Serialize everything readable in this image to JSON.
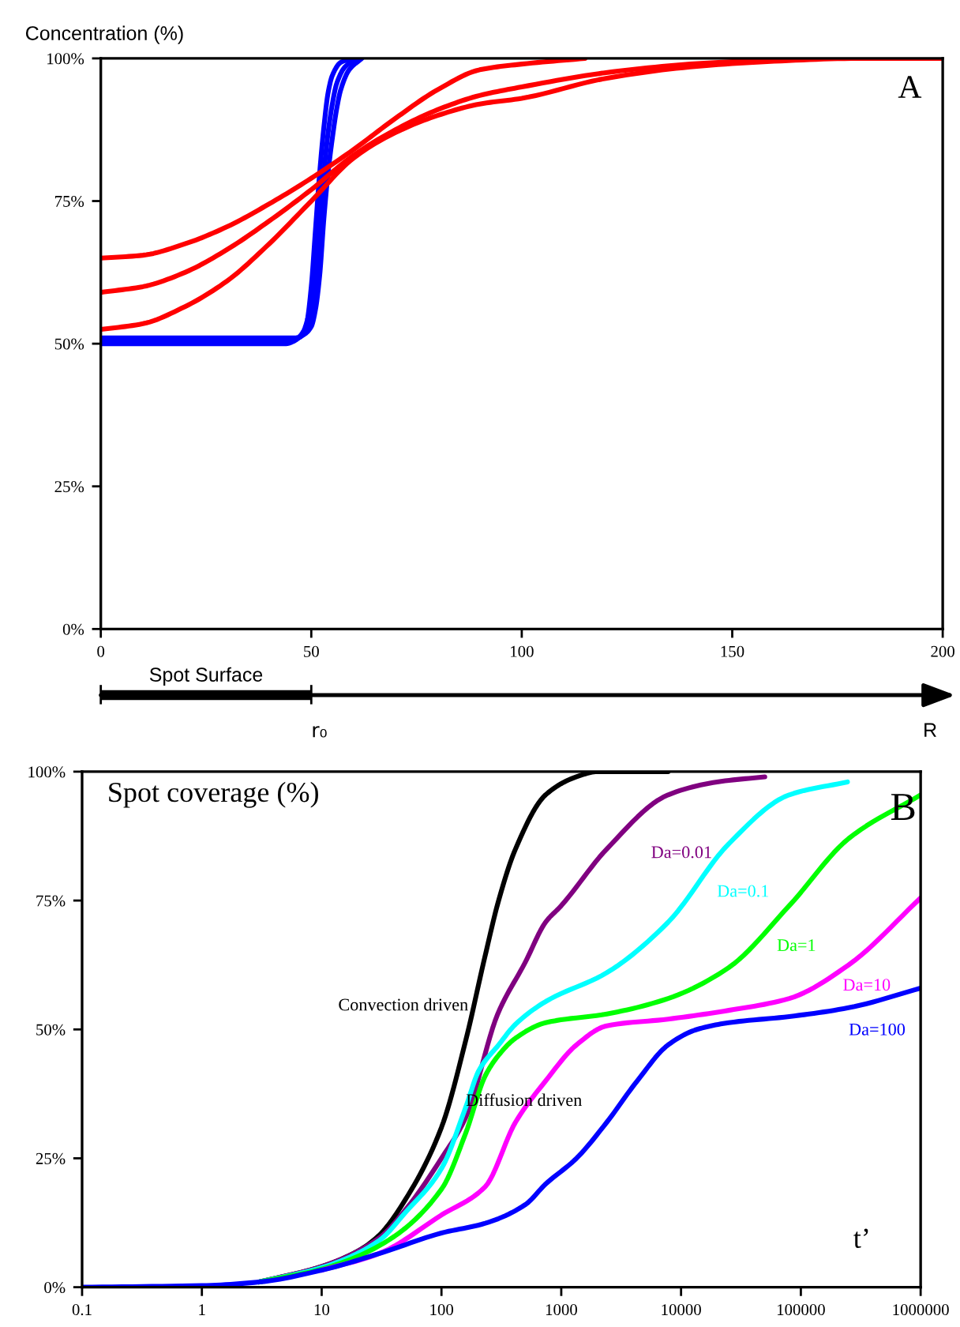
{
  "chart_data": [
    {
      "type": "line",
      "ylabel": "Concentration (%)",
      "xlim": [
        0,
        200
      ],
      "ylim": [
        0,
        100
      ],
      "xticks": [
        0,
        50,
        100,
        150,
        200
      ],
      "yticks": [
        {
          "value": 0,
          "label": "0%"
        },
        {
          "value": 25,
          "label": "25%"
        },
        {
          "value": 50,
          "label": "50%"
        },
        {
          "value": 75,
          "label": "75%"
        },
        {
          "value": 100,
          "label": "100%"
        }
      ],
      "grid": false,
      "legend": false,
      "line_style": "solid",
      "marker": "none",
      "annotations": [
        "A",
        "Spot Surface",
        "r₀",
        "R"
      ],
      "series": [
        {
          "color": "#0000ff",
          "x": [
            0,
            44,
            46,
            48,
            49,
            50,
            51,
            52,
            53,
            54,
            55,
            57,
            60
          ],
          "values": [
            50,
            50,
            50.5,
            52,
            54,
            60,
            70,
            80,
            88,
            94,
            97,
            99.3,
            100
          ]
        },
        {
          "color": "#0000ff",
          "x": [
            0,
            45,
            47,
            49,
            50,
            51,
            52,
            53,
            54,
            55,
            56,
            58,
            61
          ],
          "values": [
            50.5,
            50.5,
            51,
            52.5,
            55,
            61,
            71,
            80,
            87,
            92,
            95.5,
            98.5,
            100
          ]
        },
        {
          "color": "#0000ff",
          "x": [
            0,
            46,
            48,
            50,
            51,
            52,
            53,
            54,
            55,
            56,
            57,
            59,
            62
          ],
          "values": [
            51,
            51,
            51.5,
            53,
            56,
            62,
            72,
            80,
            86,
            91,
            94.5,
            98,
            100
          ]
        },
        {
          "color": "#ff0000",
          "x": [
            0,
            10,
            20,
            30,
            40,
            50,
            60,
            70,
            80,
            90,
            100,
            115
          ],
          "values": [
            65,
            65.5,
            67.5,
            70.5,
            74.5,
            79,
            84,
            89.5,
            94.5,
            98,
            99,
            100
          ]
        },
        {
          "color": "#ff0000",
          "x": [
            0,
            10,
            20,
            30,
            40,
            50,
            60,
            70,
            80,
            90,
            100,
            120,
            140,
            160
          ],
          "values": [
            59,
            60,
            62.5,
            66.5,
            71.5,
            77,
            83,
            87.5,
            91,
            93.5,
            95,
            97.5,
            99,
            99.8
          ]
        },
        {
          "color": "#ff0000",
          "x": [
            0,
            10,
            20,
            30,
            40,
            50,
            60,
            70,
            80,
            90,
            100,
            120,
            140,
            160,
            180,
            200
          ],
          "values": [
            52.5,
            53.5,
            56.5,
            61,
            67.5,
            75,
            82.5,
            87,
            90,
            92,
            93,
            96.5,
            98.5,
            99.5,
            100,
            100
          ]
        }
      ]
    },
    {
      "type": "line",
      "ylabel": "Spot coverage (%)",
      "xlabel": "t’",
      "log": "x",
      "xlim": [
        0.1,
        1000000
      ],
      "ylim": [
        0,
        100
      ],
      "xticks": [
        0.1,
        1,
        10,
        100,
        1000,
        10000,
        100000,
        1000000
      ],
      "yticks": [
        {
          "value": 0,
          "label": "0%"
        },
        {
          "value": 25,
          "label": "25%"
        },
        {
          "value": 50,
          "label": "50%"
        },
        {
          "value": 75,
          "label": "75%"
        },
        {
          "value": 100,
          "label": "100%"
        }
      ],
      "grid": false,
      "legend": false,
      "line_style": "solid",
      "marker": "none",
      "annotations": [
        "Convection driven",
        "Diffusion driven",
        "B"
      ],
      "series": [
        {
          "color": "#000000",
          "x": [
            3,
            10,
            20,
            30,
            50,
            100,
            160,
            230,
            300,
            415,
            740,
            1340,
            2000,
            7800
          ],
          "values": [
            1,
            4,
            7,
            10,
            17,
            31,
            48,
            64,
            75,
            85,
            95.5,
            99,
            100,
            100
          ]
        },
        {
          "name": "Da=0.01",
          "color": "#800080",
          "x": [
            3,
            10,
            30,
            50,
            100,
            160,
            295,
            500,
            740,
            1000,
            2400,
            7800,
            20000,
            50000
          ],
          "values": [
            1,
            4,
            9.5,
            15,
            25,
            33,
            53,
            63,
            70.8,
            74,
            85,
            95.5,
            98,
            99
          ]
        },
        {
          "name": "Da=0.1",
          "color": "#00ffff",
          "x": [
            3,
            10,
            30,
            50,
            100,
            160,
            205,
            300,
            415,
            740,
            2400,
            7800,
            25000,
            80000,
            245000
          ],
          "values": [
            1,
            3.8,
            9,
            14.5,
            23,
            35,
            42,
            47,
            51,
            55.4,
            61,
            70.8,
            86,
            95.5,
            98
          ]
        },
        {
          "name": "Da=1",
          "color": "#00ff00",
          "x": [
            3,
            10,
            30,
            100,
            160,
            232,
            300,
            415,
            740,
            2400,
            7800,
            25000,
            80000,
            250000,
            1000000
          ],
          "values": [
            1,
            3.5,
            8,
            19,
            30,
            41,
            45,
            48.3,
            51.3,
            53,
            56,
            62,
            74,
            87,
            95.5
          ]
        },
        {
          "name": "Da=10",
          "color": "#ff00ff",
          "x": [
            10,
            30,
            100,
            232,
            415,
            740,
            1340,
            2400,
            7800,
            25000,
            80000,
            250000,
            1000000
          ],
          "values": [
            3.3,
            6.5,
            14,
            19.5,
            32,
            40,
            47,
            50.7,
            52,
            53.7,
            56,
            62.5,
            75.5
          ]
        },
        {
          "name": "Da=100",
          "color": "#0000ff",
          "x": [
            0.1,
            1,
            3,
            10,
            30,
            100,
            232,
            500,
            740,
            1340,
            2400,
            4300,
            7800,
            13600,
            25000,
            80000,
            250000,
            1000000
          ],
          "values": [
            0,
            0.3,
            1,
            3.3,
            6.5,
            10.5,
            12.4,
            16,
            20,
            25,
            32,
            40,
            47,
            50,
            51.3,
            52.5,
            54.2,
            58
          ]
        }
      ]
    }
  ]
}
